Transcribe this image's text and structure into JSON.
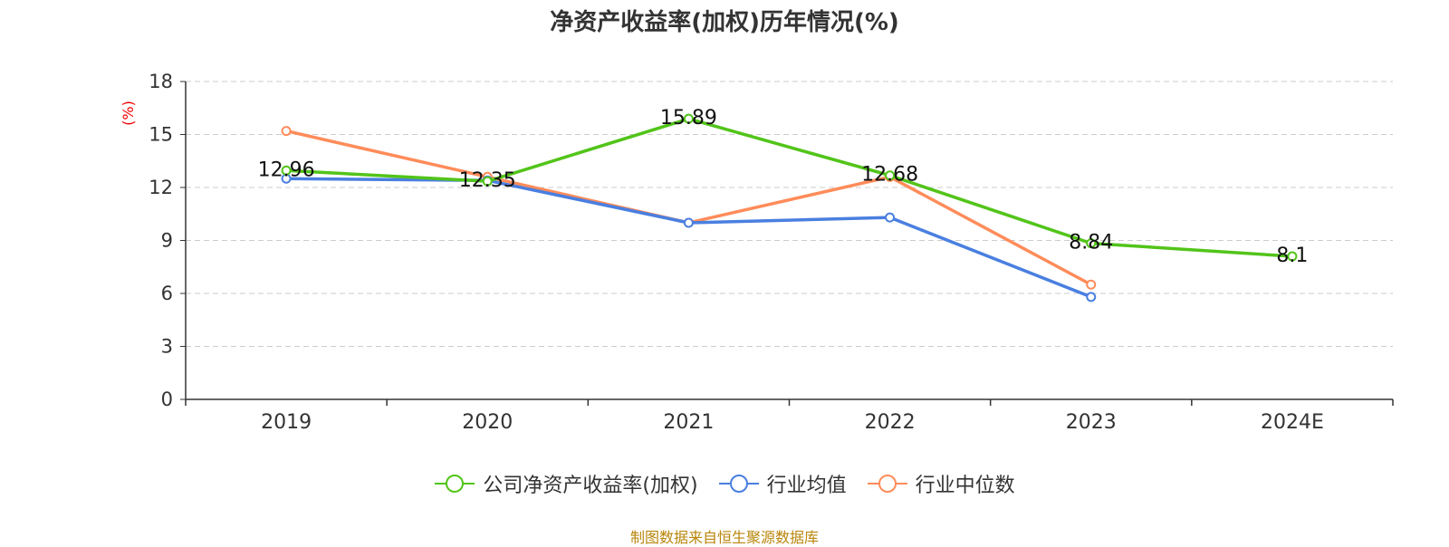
{
  "chart_data": {
    "type": "line",
    "title": "净资产收益率(加权)历年情况(%)",
    "ylabel": "(%)",
    "xlabel": "",
    "categories": [
      "2019",
      "2020",
      "2021",
      "2022",
      "2023",
      "2024E"
    ],
    "ylim": [
      0,
      18
    ],
    "yticks": [
      0,
      3,
      6,
      9,
      12,
      15,
      18
    ],
    "grid": true,
    "legend_position": "bottom",
    "series": [
      {
        "name": "公司净资产收益率(加权)",
        "color": "#52c41a",
        "values": [
          12.96,
          12.35,
          15.89,
          12.68,
          8.84,
          8.1
        ],
        "labels": [
          "12.96",
          "12.35",
          "15.89",
          "12.68",
          "8.84",
          "8.1"
        ]
      },
      {
        "name": "行业均值",
        "color": "#4a7fe0",
        "values": [
          12.5,
          12.4,
          10.0,
          10.3,
          5.8,
          null
        ]
      },
      {
        "name": "行业中位数",
        "color": "#ff8c5a",
        "values": [
          15.2,
          12.6,
          10.0,
          12.6,
          6.5,
          null
        ]
      }
    ]
  },
  "footer": {
    "source": "制图数据来自恒生聚源数据库"
  }
}
